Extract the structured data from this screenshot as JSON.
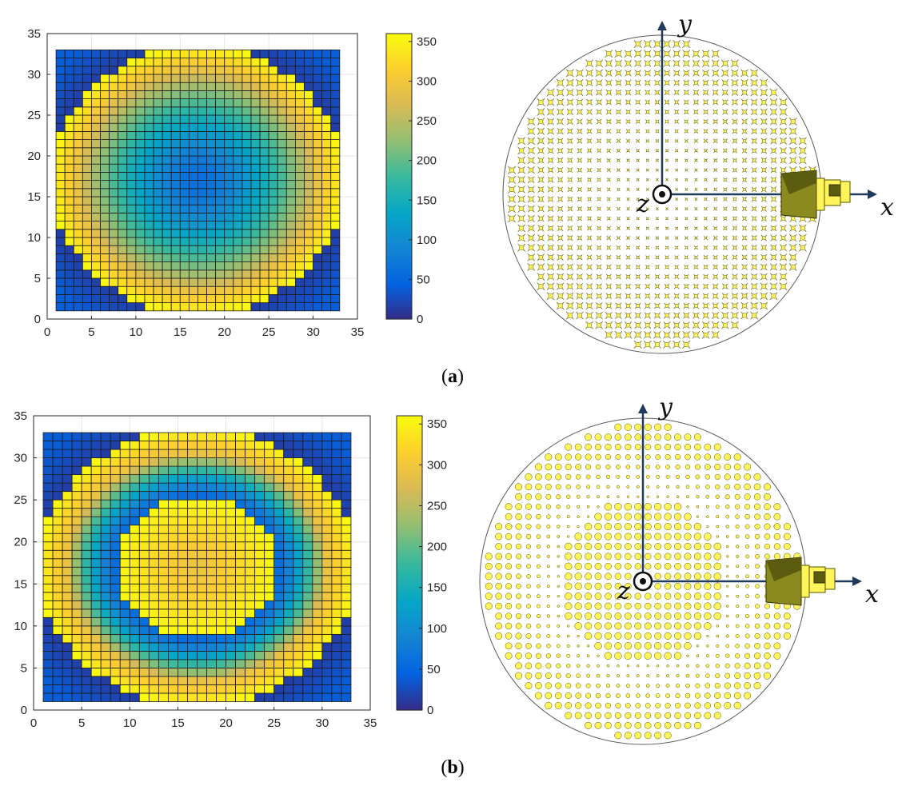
{
  "panels": [
    {
      "id": "a",
      "caption": {
        "open": "(",
        "letter": "a",
        "close": ")"
      },
      "heatmap_ring_radii": [
        [
          13.5,
          16.5
        ]
      ],
      "axis_letters": {
        "x": "x",
        "y": "y",
        "z": "z"
      }
    },
    {
      "id": "b",
      "caption": {
        "open": "(",
        "letter": "b",
        "close": ")"
      },
      "heatmap_ring_radii": [
        [
          13.5,
          16.5
        ],
        [
          0,
          8.5
        ]
      ],
      "axis_letters": {
        "x": "x",
        "y": "y",
        "z": "z"
      }
    }
  ],
  "chart_data": [
    {
      "type": "heatmap",
      "panel": "a",
      "grid_size": [
        32,
        32
      ],
      "cell_range": [
        1,
        33
      ],
      "xlim": [
        0,
        35
      ],
      "ylim": [
        0,
        35
      ],
      "xticks": [
        0,
        5,
        10,
        15,
        20,
        25,
        30,
        35
      ],
      "yticks": [
        0,
        5,
        10,
        15,
        20,
        25,
        30,
        35
      ],
      "colorbar": {
        "range": [
          0,
          360
        ],
        "ticks": [
          0,
          50,
          100,
          150,
          200,
          250,
          300,
          350
        ]
      },
      "colormap": "parula",
      "grid": true,
      "title": "",
      "xlabel": "",
      "ylabel": ""
    },
    {
      "type": "heatmap",
      "panel": "b",
      "grid_size": [
        32,
        32
      ],
      "cell_range": [
        1,
        33
      ],
      "xlim": [
        0,
        35
      ],
      "ylim": [
        0,
        35
      ],
      "xticks": [
        0,
        5,
        10,
        15,
        20,
        25,
        30,
        35
      ],
      "yticks": [
        0,
        5,
        10,
        15,
        20,
        25,
        30,
        35
      ],
      "colorbar": {
        "range": [
          0,
          360
        ],
        "ticks": [
          0,
          50,
          100,
          150,
          200,
          250,
          300,
          350
        ]
      },
      "colormap": "parula",
      "grid": true,
      "title": "",
      "xlabel": "",
      "ylabel": ""
    }
  ],
  "colors": {
    "parula_stops": [
      "#352a87",
      "#0363e1",
      "#1485d4",
      "#06a7c6",
      "#38b99e",
      "#92bf73",
      "#d9ba56",
      "#fcce2e",
      "#f9fb0e"
    ],
    "element_fill": "#fff45a",
    "element_stroke": "#555500",
    "axis_arrow": "#1f3a5a",
    "horn": "#8a8a1e",
    "horn_dark": "#5c5c10",
    "feed_yellow": "#fff45a"
  }
}
